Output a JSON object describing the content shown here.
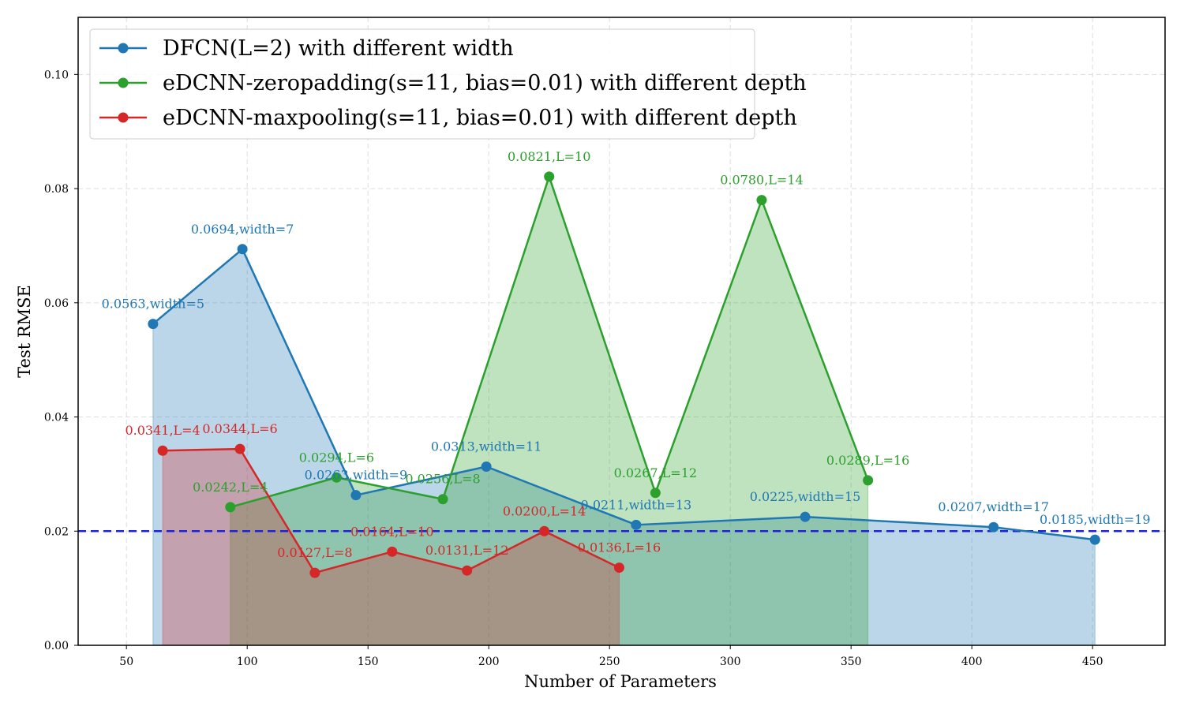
{
  "chart_data": {
    "type": "line",
    "title": "",
    "xlabel": "Number of Parameters",
    "ylabel": "Test RMSE",
    "xlim": [
      30,
      480
    ],
    "ylim": [
      0,
      0.11
    ],
    "xticks": [
      50,
      100,
      150,
      200,
      250,
      300,
      350,
      400,
      450
    ],
    "xtick_labels": [
      "50",
      "100",
      "150",
      "200",
      "250",
      "300",
      "350",
      "400",
      "450"
    ],
    "yticks": [
      0,
      0.02,
      0.04,
      0.06,
      0.08,
      0.1
    ],
    "ytick_labels": [
      "0.00",
      "0.02",
      "0.04",
      "0.06",
      "0.08",
      "0.10"
    ],
    "grid": true,
    "legend_position": "top-left",
    "reference_line": {
      "y": 0.02,
      "color": "#2020e0",
      "style": "dashed"
    },
    "series": [
      {
        "name": "DFCN(L=2) with different width",
        "color": "#1f77b4",
        "fill": true,
        "x": [
          61,
          98,
          145,
          199,
          261,
          331,
          409,
          451
        ],
        "y": [
          0.0563,
          0.0694,
          0.0263,
          0.0313,
          0.0211,
          0.0225,
          0.0207,
          0.0185
        ],
        "labels": [
          "0.0563,width=5",
          "0.0694,width=7",
          "0.0263,width=9",
          "0.0313,width=11",
          "0.0211,width=13",
          "0.0225,width=15",
          "0.0207,width=17",
          "0.0185,width=19"
        ]
      },
      {
        "name": "eDCNN-zeropadding(s=11, bias=0.01) with different depth",
        "color": "#2ca02c",
        "fill": true,
        "x": [
          93,
          137,
          181,
          225,
          269,
          313,
          357
        ],
        "y": [
          0.0242,
          0.0294,
          0.0256,
          0.0821,
          0.0267,
          0.078,
          0.0289
        ],
        "labels": [
          "0.0242,L=4",
          "0.0294,L=6",
          "0.0256,L=8",
          "0.0821,L=10",
          "0.0267,L=12",
          "0.0780,L=14",
          "0.0289,L=16"
        ]
      },
      {
        "name": "eDCNN-maxpooling(s=11, bias=0.01) with different depth",
        "color": "#d62728",
        "fill": true,
        "x": [
          65,
          97,
          128,
          160,
          191,
          223,
          254
        ],
        "y": [
          0.0341,
          0.0344,
          0.0127,
          0.0164,
          0.0131,
          0.02,
          0.0136
        ],
        "labels": [
          "0.0341,L=4",
          "0.0344,L=6",
          "0.0127,L=8",
          "0.0164,L=10",
          "0.0131,L=12",
          "0.0200,L=14",
          "0.0136,L=16"
        ]
      }
    ]
  }
}
